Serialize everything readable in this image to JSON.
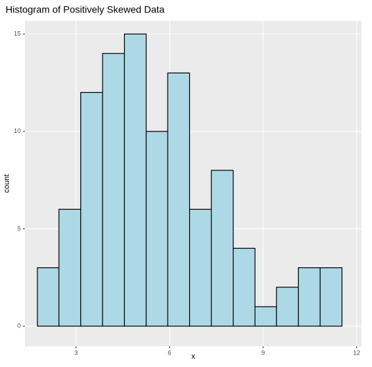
{
  "chart_data": {
    "type": "histogram",
    "title": "Histogram of Positively Skewed Data",
    "x_label": "x",
    "y_label": "count",
    "bins": [
      1.76,
      2.45,
      3.15,
      3.85,
      4.55,
      5.25,
      5.94,
      6.64,
      7.34,
      8.04,
      8.74,
      9.43,
      10.13,
      10.83,
      11.53
    ],
    "values": [
      3,
      6,
      12,
      14,
      15,
      10,
      13,
      6,
      8,
      4,
      1,
      2,
      3,
      3
    ],
    "color": "#add8e6",
    "xlim": [
      1.36,
      12.16
    ],
    "xticks": [
      3,
      6,
      9,
      12
    ],
    "ylim": [
      -1.03,
      15.68
    ],
    "yticks": [
      0,
      5,
      10,
      15
    ],
    "grid": true
  }
}
